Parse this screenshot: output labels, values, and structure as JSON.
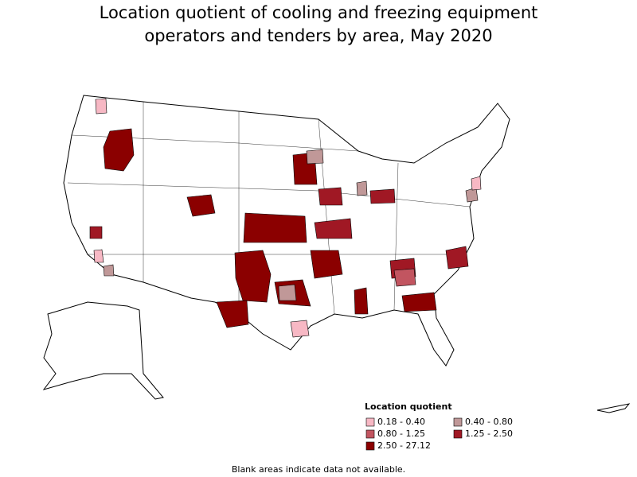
{
  "title": "Location quotient of cooling and freezing equipment operators and tenders by area, May 2020",
  "legend": {
    "title": "Location quotient",
    "items": [
      {
        "label": "0.18 - 0.40",
        "color": "#f7b8c4"
      },
      {
        "label": "0.40 - 0.80",
        "color": "#c09898"
      },
      {
        "label": "0.80 - 1.25",
        "color": "#c25560"
      },
      {
        "label": "1.25 - 2.50",
        "color": "#a01824"
      },
      {
        "label": "2.50 - 27.12",
        "color": "#8b0000"
      }
    ]
  },
  "note": "Blank areas indicate data not available."
}
